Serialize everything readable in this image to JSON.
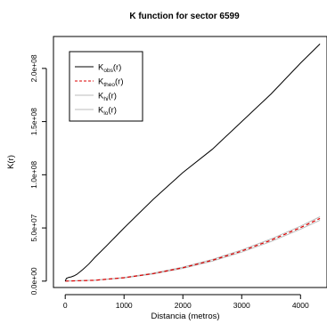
{
  "chart_data": {
    "type": "line",
    "title": "K function for sector 6599",
    "xlabel": "Distancia (metros)",
    "ylabel": "K(r)",
    "xlim": [
      -200,
      4450
    ],
    "ylim": [
      -6000000.0,
      230000000.0
    ],
    "x_ticks": [
      0,
      1000,
      2000,
      3000,
      4000
    ],
    "x_tick_labels": [
      "0",
      "1000",
      "2000",
      "3000",
      "4000"
    ],
    "y_ticks": [
      0,
      50000000,
      100000000,
      150000000,
      200000000
    ],
    "y_tick_labels": [
      "0.0e+00",
      "5.0e+07",
      "1.0e+08",
      "1.5e+08",
      "2.0e+08"
    ],
    "grid": false,
    "legend_position": "top-left",
    "legend": [
      {
        "main": "K",
        "sub": "obs",
        "suffix": "(r)",
        "color": "#000000",
        "dash": "solid"
      },
      {
        "main": "K",
        "sub": "theo",
        "suffix": "(r)",
        "color": "#dd0000",
        "dash": "dashed"
      },
      {
        "main": "K",
        "sub": "hi",
        "suffix": "(r)",
        "color": "#bbbbbb",
        "dash": "solid"
      },
      {
        "main": "K",
        "sub": "lo",
        "suffix": "(r)",
        "color": "#bbbbbb",
        "dash": "solid"
      }
    ],
    "series": [
      {
        "name": "K_obs(r)",
        "color": "#000000",
        "dash": "solid",
        "x": [
          0,
          20,
          60,
          100,
          150,
          200,
          300,
          400,
          500,
          700,
          1000,
          1500,
          2000,
          2500,
          3000,
          3500,
          4000,
          4330
        ],
        "y": [
          0,
          2500000,
          3500000,
          4000000,
          5000000,
          6500000,
          11000000,
          16000000,
          22000000,
          33000000,
          50000000,
          77000000,
          102000000,
          124000000,
          150000000,
          176000000,
          205000000,
          223000000
        ]
      },
      {
        "name": "K_theo(r)",
        "color": "#dd0000",
        "dash": "dashed",
        "x": [
          0,
          500,
          1000,
          1500,
          2000,
          2500,
          3000,
          3500,
          4000,
          4330
        ],
        "y": [
          0,
          800000,
          3200000,
          7100000,
          12600000,
          19600000,
          28300000,
          38500000,
          50300000,
          58900000
        ]
      },
      {
        "name": "K_hi(r)",
        "color": "#bbbbbb",
        "dash": "solid",
        "x": [
          0,
          500,
          1000,
          1500,
          2000,
          2500,
          3000,
          3500,
          4000,
          4330
        ],
        "y": [
          0,
          850000,
          3400000,
          7500000,
          13200000,
          20400000,
          29300000,
          39700000,
          51700000,
          60500000
        ]
      },
      {
        "name": "K_lo(r)",
        "color": "#bbbbbb",
        "dash": "solid",
        "x": [
          0,
          500,
          1000,
          1500,
          2000,
          2500,
          3000,
          3500,
          4000,
          4330
        ],
        "y": [
          0,
          750000,
          3000000,
          6700000,
          12000000,
          18800000,
          27300000,
          37300000,
          48900000,
          57300000
        ]
      }
    ]
  }
}
